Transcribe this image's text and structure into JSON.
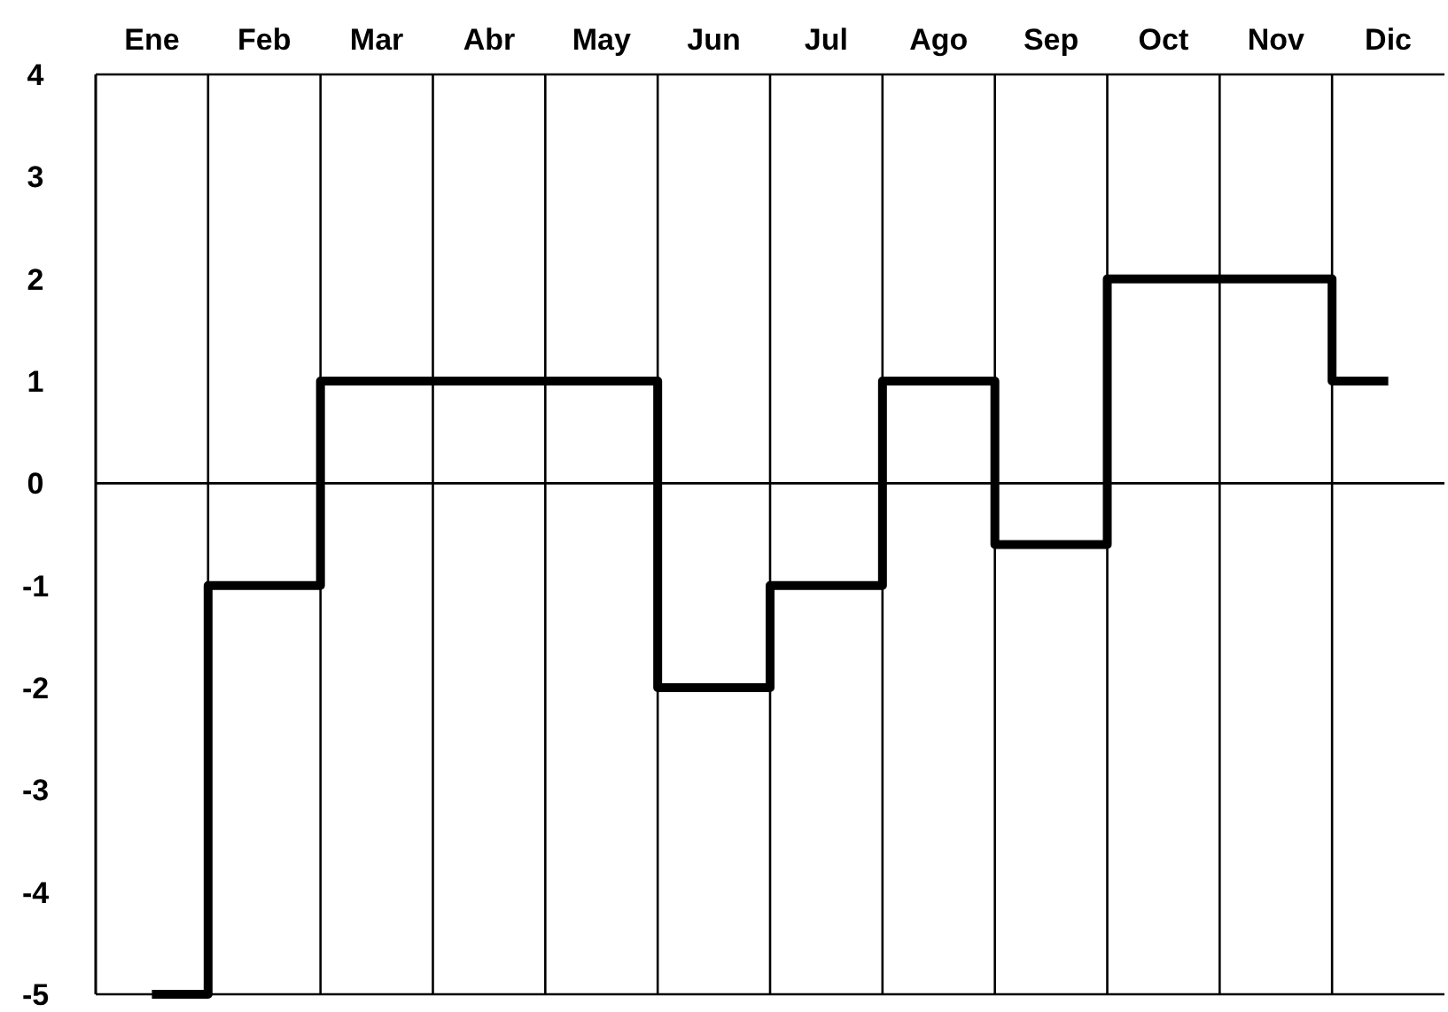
{
  "chart_data": {
    "type": "step",
    "categories": [
      "Ene",
      "Feb",
      "Mar",
      "Abr",
      "May",
      "Jun",
      "Jul",
      "Ago",
      "Sep",
      "Oct",
      "Nov",
      "Dic"
    ],
    "ylim": [
      -5,
      4
    ],
    "yticks": [
      -5,
      -4,
      -3,
      -2,
      -1,
      0,
      1,
      2,
      3,
      4
    ],
    "grid": "x",
    "ref_lines": [
      {
        "axis": "y",
        "value": 0,
        "color": "#000000"
      }
    ],
    "series": [
      {
        "color": "#000000",
        "values": [
          -5,
          -1,
          1,
          1,
          1,
          -2,
          -1,
          1,
          -0.6,
          2,
          2,
          1
        ]
      }
    ]
  }
}
